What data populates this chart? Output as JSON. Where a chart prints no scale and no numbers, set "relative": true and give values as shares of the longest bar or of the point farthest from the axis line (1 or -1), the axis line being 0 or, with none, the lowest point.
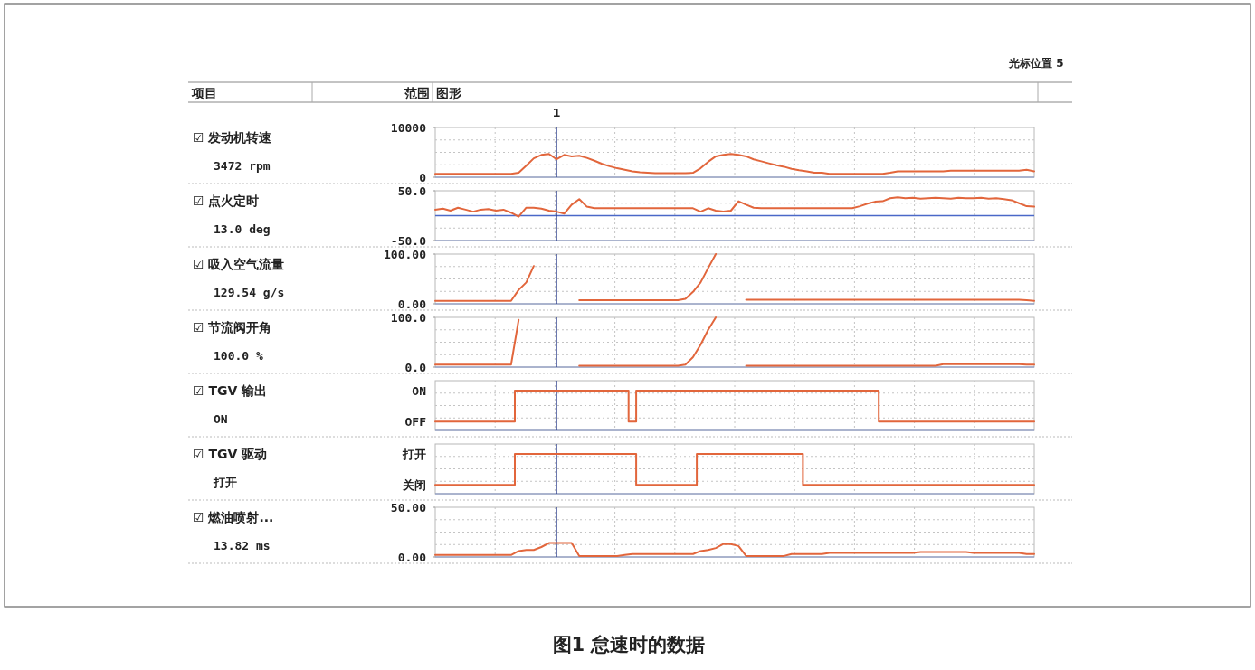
{
  "chart_data": [
    {
      "type": "line",
      "ylabel": "☑ 发动机转速",
      "annotations": [
        "3472 rpm",
        "项目",
        "范围",
        "图形",
        "光标位置 5",
        "1"
      ],
      "categories": [
        null,
        null,
        null,
        null,
        null,
        null,
        null,
        null,
        null,
        null,
        null,
        null,
        null,
        null,
        null,
        null,
        null,
        null,
        null,
        null,
        null,
        null,
        null,
        null,
        null,
        null,
        null,
        null,
        null,
        null,
        null,
        null,
        null,
        null,
        null,
        null,
        null,
        null,
        null,
        null,
        null,
        null,
        null,
        null,
        null,
        null,
        null,
        null,
        null,
        null,
        null,
        null,
        null,
        null,
        null,
        null,
        null,
        null,
        null,
        null,
        null,
        null,
        null,
        null,
        null,
        null,
        null,
        null,
        null,
        null,
        null,
        null,
        null,
        null,
        null,
        null,
        null,
        null,
        null,
        null
      ],
      "values": [
        700,
        700,
        700,
        700,
        700,
        700,
        700,
        700,
        700,
        700,
        700,
        900,
        2300,
        3800,
        4500,
        4700,
        3600,
        4500,
        4200,
        4300,
        3900,
        3300,
        2700,
        2200,
        1800,
        1500,
        1200,
        1000,
        900,
        800,
        800,
        800,
        800,
        800,
        900,
        1800,
        3100,
        4200,
        4500,
        4700,
        4500,
        4200,
        3600,
        3200,
        2800,
        2400,
        2100,
        1700,
        1400,
        1200,
        900,
        900,
        700,
        700,
        700,
        700,
        700,
        700,
        700,
        700,
        900,
        1200,
        1200,
        1200,
        1200,
        1200,
        1200,
        1200,
        1300,
        1300,
        1300,
        1300,
        1300,
        1300,
        1300,
        1300,
        1300,
        1300,
        1500,
        1200
      ],
      "color": "#e2663c",
      "ylim": [
        0,
        10000
      ],
      "yticks": [
        10000,
        0
      ],
      "grid": true,
      "tick_labels": "y"
    },
    {
      "type": "line",
      "ylabel": "☑ 点火定时",
      "annotations": [
        "13.0 deg"
      ],
      "categories": [
        null,
        null,
        null,
        null,
        null,
        null,
        null,
        null,
        null,
        null,
        null,
        null,
        null,
        null,
        null,
        null,
        null,
        null,
        null,
        null,
        null,
        null,
        null,
        null,
        null,
        null,
        null,
        null,
        null,
        null,
        null,
        null,
        null,
        null,
        null,
        null,
        null,
        null,
        null,
        null,
        null,
        null,
        null,
        null,
        null,
        null,
        null,
        null,
        null,
        null,
        null,
        null,
        null,
        null,
        null,
        null,
        null,
        null,
        null,
        null,
        null,
        null,
        null,
        null,
        null,
        null,
        null,
        null,
        null,
        null,
        null,
        null,
        null,
        null,
        null,
        null,
        null,
        null,
        null,
        null
      ],
      "values": [
        12,
        14,
        10,
        16,
        12,
        8,
        12,
        13,
        10,
        12,
        6,
        -2,
        16,
        16,
        14,
        10,
        8,
        4,
        22,
        33,
        18,
        15,
        15,
        15,
        15,
        15,
        15,
        15,
        15,
        15,
        15,
        15,
        15,
        15,
        15,
        8,
        15,
        10,
        8,
        10,
        29,
        22,
        16,
        15,
        15,
        15,
        15,
        15,
        15,
        15,
        15,
        15,
        15,
        15,
        15,
        15,
        19,
        24,
        28,
        29,
        35,
        37,
        35,
        36,
        34,
        35,
        36,
        35,
        34,
        36,
        35,
        35,
        36,
        34,
        35,
        33,
        31,
        25,
        19,
        18
      ],
      "color": "#e2663c",
      "ylim": [
        -50,
        50
      ],
      "yticks": [
        {
          "value": 50,
          "label": "50.0"
        },
        {
          "value": -50,
          "label": "-50.0"
        }
      ],
      "grid": true,
      "tick_labels": "y",
      "ref_lines": [
        {
          "axis": "y",
          "value": 0,
          "color": "#4a68c8"
        }
      ]
    },
    {
      "type": "line",
      "ylabel": "☑ 吸入空气流量",
      "annotations": [
        "129.54 g/s"
      ],
      "categories": [
        null,
        null,
        null,
        null,
        null,
        null,
        null,
        null,
        null,
        null,
        null,
        null,
        null,
        null,
        null,
        null,
        null,
        null,
        null,
        null,
        null,
        null,
        null,
        null,
        null,
        null,
        null,
        null,
        null,
        null,
        null,
        null,
        null,
        null,
        null,
        null,
        null,
        null,
        null,
        null,
        null,
        null,
        null,
        null,
        null,
        null,
        null,
        null,
        null,
        null,
        null,
        null,
        null,
        null,
        null,
        null,
        null,
        null,
        null,
        null,
        null,
        null,
        null,
        null,
        null,
        null,
        null,
        null,
        null,
        null,
        null,
        null,
        null,
        null,
        null,
        null,
        null,
        null,
        null,
        null
      ],
      "values": [
        6,
        6,
        6,
        6,
        6,
        6,
        6,
        6,
        6,
        6,
        6,
        28,
        43,
        76,
        null,
        null,
        null,
        null,
        null,
        7,
        7,
        7,
        7,
        7,
        7,
        7,
        7,
        7,
        7,
        7,
        7,
        7,
        7,
        10,
        24,
        43,
        72,
        100,
        null,
        null,
        null,
        8,
        8,
        8,
        8,
        8,
        8,
        8,
        8,
        8,
        8,
        8,
        8,
        8,
        8,
        8,
        8,
        8,
        8,
        8,
        8,
        8,
        8,
        8,
        8,
        8,
        8,
        8,
        8,
        8,
        8,
        8,
        8,
        8,
        8,
        8,
        8,
        8,
        7,
        6
      ],
      "color": "#e2663c",
      "ylim": [
        0,
        100
      ],
      "yticks": [
        {
          "value": 100,
          "label": "100.00"
        },
        {
          "value": 0,
          "label": "0.00"
        }
      ],
      "grid": true,
      "tick_labels": "y"
    },
    {
      "type": "line",
      "ylabel": "☑ 节流阀开角",
      "annotations": [
        "100.0 %"
      ],
      "categories": [
        null,
        null,
        null,
        null,
        null,
        null,
        null,
        null,
        null,
        null,
        null,
        null,
        null,
        null,
        null,
        null,
        null,
        null,
        null,
        null,
        null,
        null,
        null,
        null,
        null,
        null,
        null,
        null,
        null,
        null,
        null,
        null,
        null,
        null,
        null,
        null,
        null,
        null,
        null,
        null,
        null,
        null,
        null,
        null,
        null,
        null,
        null,
        null,
        null,
        null,
        null,
        null,
        null,
        null,
        null,
        null,
        null,
        null,
        null,
        null,
        null,
        null,
        null,
        null,
        null,
        null,
        null,
        null,
        null,
        null,
        null,
        null,
        null,
        null,
        null,
        null,
        null,
        null,
        null,
        null
      ],
      "values": [
        5,
        5,
        5,
        5,
        5,
        5,
        5,
        5,
        5,
        5,
        5,
        95,
        null,
        null,
        null,
        null,
        null,
        null,
        null,
        3,
        3,
        3,
        3,
        3,
        3,
        3,
        3,
        3,
        3,
        3,
        3,
        3,
        3,
        5,
        20,
        45,
        75,
        100,
        null,
        null,
        null,
        3,
        3,
        3,
        3,
        3,
        3,
        3,
        3,
        3,
        3,
        3,
        3,
        3,
        3,
        3,
        3,
        3,
        3,
        3,
        3,
        3,
        3,
        3,
        3,
        3,
        3,
        6,
        6,
        6,
        6,
        6,
        6,
        6,
        6,
        6,
        6,
        6,
        5,
        5
      ],
      "color": "#e2663c",
      "ylim": [
        0,
        100
      ],
      "yticks": [
        {
          "value": 100,
          "label": "100.0"
        },
        {
          "value": 0,
          "label": "0.0"
        }
      ],
      "grid": true,
      "tick_labels": "y"
    },
    {
      "type": "step",
      "ylabel": "☑ TGV 输出",
      "annotations": [
        "ON",
        "ON",
        "OFF"
      ],
      "relative": true,
      "categories": [
        null,
        null,
        null,
        null,
        null,
        null,
        null,
        null,
        null,
        null,
        null,
        null,
        null,
        null,
        null,
        null,
        null,
        null,
        null,
        null,
        null,
        null,
        null,
        null,
        null,
        null,
        null,
        null,
        null,
        null,
        null,
        null,
        null,
        null,
        null,
        null,
        null,
        null,
        null,
        null,
        null,
        null,
        null,
        null,
        null,
        null,
        null,
        null,
        null,
        null,
        null,
        null,
        null,
        null,
        null,
        null,
        null,
        null,
        null,
        null,
        null,
        null,
        null,
        null,
        null,
        null,
        null,
        null,
        null,
        null,
        null,
        null,
        null,
        null,
        null,
        null,
        null,
        null,
        null,
        null
      ],
      "values": [
        0.22,
        0.22,
        0.22,
        0.22,
        0.22,
        0.22,
        0.22,
        0.22,
        0.22,
        0.22,
        0.22,
        1,
        1,
        1,
        1,
        1,
        1,
        1,
        1,
        1,
        1,
        1,
        1,
        1,
        1,
        1,
        0.22,
        1,
        1,
        1,
        1,
        1,
        1,
        1,
        1,
        1,
        1,
        1,
        1,
        1,
        1,
        1,
        1,
        1,
        1,
        1,
        1,
        1,
        1,
        1,
        1,
        1,
        1,
        1,
        1,
        1,
        1,
        1,
        1,
        0.22,
        0.22,
        0.22,
        0.22,
        0.22,
        0.22,
        0.22,
        0.22,
        0.22,
        0.22,
        0.22,
        0.22,
        0.22,
        0.22,
        0.22,
        0.22,
        0.22,
        0.22,
        0.22,
        0.22,
        0.22
      ],
      "color": "#e2663c",
      "grid": true,
      "tick_labels": "y"
    },
    {
      "type": "step",
      "ylabel": "☑ TGV 驱动",
      "annotations": [
        "打开",
        "打开",
        "关闭"
      ],
      "relative": true,
      "categories": [
        null,
        null,
        null,
        null,
        null,
        null,
        null,
        null,
        null,
        null,
        null,
        null,
        null,
        null,
        null,
        null,
        null,
        null,
        null,
        null,
        null,
        null,
        null,
        null,
        null,
        null,
        null,
        null,
        null,
        null,
        null,
        null,
        null,
        null,
        null,
        null,
        null,
        null,
        null,
        null,
        null,
        null,
        null,
        null,
        null,
        null,
        null,
        null,
        null,
        null,
        null,
        null,
        null,
        null,
        null,
        null,
        null,
        null,
        null,
        null,
        null,
        null,
        null,
        null,
        null,
        null,
        null,
        null,
        null,
        null,
        null,
        null,
        null,
        null,
        null,
        null,
        null,
        null,
        null,
        null
      ],
      "values": [
        0.22,
        0.22,
        0.22,
        0.22,
        0.22,
        0.22,
        0.22,
        0.22,
        0.22,
        0.22,
        0.22,
        1,
        1,
        1,
        1,
        1,
        1,
        1,
        1,
        1,
        1,
        1,
        1,
        1,
        1,
        1,
        1,
        0.22,
        0.22,
        0.22,
        0.22,
        0.22,
        0.22,
        0.22,
        0.22,
        1,
        1,
        1,
        1,
        1,
        1,
        1,
        1,
        1,
        1,
        1,
        1,
        1,
        1,
        0.22,
        0.22,
        0.22,
        0.22,
        0.22,
        0.22,
        0.22,
        0.22,
        0.22,
        0.22,
        0.22,
        0.22,
        0.22,
        0.22,
        0.22,
        0.22,
        0.22,
        0.22,
        0.22,
        0.22,
        0.22,
        0.22,
        0.22,
        0.22,
        0.22,
        0.22,
        0.22,
        0.22,
        0.22,
        0.22,
        0.22
      ],
      "color": "#e2663c",
      "grid": true,
      "tick_labels": "y"
    },
    {
      "type": "line",
      "ylabel": "☑ 燃油喷射...",
      "annotations": [
        "13.82 ms",
        "图1 怠速时的数据"
      ],
      "categories": [
        null,
        null,
        null,
        null,
        null,
        null,
        null,
        null,
        null,
        null,
        null,
        null,
        null,
        null,
        null,
        null,
        null,
        null,
        null,
        null,
        null,
        null,
        null,
        null,
        null,
        null,
        null,
        null,
        null,
        null,
        null,
        null,
        null,
        null,
        null,
        null,
        null,
        null,
        null,
        null,
        null,
        null,
        null,
        null,
        null,
        null,
        null,
        null,
        null,
        null,
        null,
        null,
        null,
        null,
        null,
        null,
        null,
        null,
        null,
        null,
        null,
        null,
        null,
        null,
        null,
        null,
        null,
        null,
        null,
        null,
        null,
        null,
        null,
        null,
        null,
        null,
        null,
        null,
        null,
        null
      ],
      "values": [
        2,
        2,
        2,
        2,
        2,
        2,
        2,
        2,
        2,
        2,
        2,
        6,
        7,
        7,
        10,
        14,
        14,
        14,
        14,
        1,
        1,
        1,
        1,
        1,
        1,
        2,
        3,
        3,
        3,
        3,
        3,
        3,
        3,
        3,
        3,
        6,
        7,
        9,
        13,
        13,
        11,
        1,
        1,
        1,
        1,
        1,
        1,
        3,
        3,
        3,
        3,
        3,
        4,
        4,
        4,
        4,
        4,
        4,
        4,
        4,
        4,
        4,
        4,
        4,
        5,
        5,
        5,
        5,
        5,
        5,
        5,
        4,
        4,
        4,
        4,
        4,
        4,
        4,
        3,
        3
      ],
      "color": "#e2663c",
      "ylim": [
        0,
        50
      ],
      "yticks": [
        {
          "value": 50,
          "label": "50.00"
        },
        {
          "value": 0,
          "label": "0.00"
        }
      ],
      "grid": true,
      "tick_labels": "y"
    }
  ]
}
